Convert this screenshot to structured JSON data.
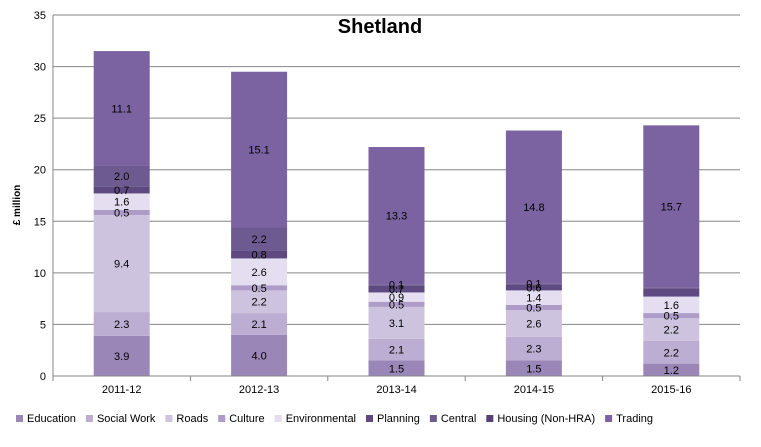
{
  "chart_data": {
    "type": "bar",
    "stacked": true,
    "title": "Shetland",
    "xlabel": "",
    "ylabel": "£ million",
    "ylim": [
      0,
      35
    ],
    "yticks": [
      0,
      5,
      10,
      15,
      20,
      25,
      30,
      35
    ],
    "grid": true,
    "legend_position": "bottom",
    "categories": [
      "2011-12",
      "2012-13",
      "2013-14",
      "2014-15",
      "2015-16"
    ],
    "series": [
      {
        "name": "Education",
        "color": "#9b86b8",
        "values": [
          3.9,
          4.0,
          1.5,
          1.5,
          1.2
        ],
        "labels": [
          "3.9",
          "4.0",
          "1.5",
          "1.5",
          "1.2"
        ]
      },
      {
        "name": "Social Work",
        "color": "#bcaed2",
        "values": [
          2.3,
          2.1,
          2.1,
          2.3,
          2.2
        ],
        "labels": [
          "2.3",
          "2.1",
          "2.1",
          "2.3",
          "2.2"
        ]
      },
      {
        "name": "Roads",
        "color": "#cdc3de",
        "values": [
          9.4,
          2.2,
          3.1,
          2.6,
          2.2
        ],
        "labels": [
          "9.4",
          "2.2",
          "3.1",
          "2.6",
          "2.2"
        ]
      },
      {
        "name": "Culture",
        "color": "#ad9cc7",
        "values": [
          0.5,
          0.5,
          0.5,
          0.5,
          0.5
        ],
        "labels": [
          "0.5",
          "0.5",
          "0.5",
          "0.5",
          "0.5"
        ]
      },
      {
        "name": "Environmental",
        "color": "#e4def0",
        "values": [
          1.6,
          2.6,
          0.9,
          1.4,
          1.6
        ],
        "labels": [
          "1.6",
          "2.6",
          "0.9",
          "1.4",
          "1.6"
        ]
      },
      {
        "name": "Planning",
        "color": "#5e4a80",
        "values": [
          0.7,
          0.8,
          0.7,
          0.6,
          0.8
        ],
        "labels": [
          "0.7",
          "0.8",
          "0.7",
          "0.6",
          ""
        ]
      },
      {
        "name": "Central",
        "color": "#6d5a90",
        "values": [
          2.0,
          2.2,
          0.1,
          0.1,
          0.1
        ],
        "labels": [
          "2.0",
          "2.2",
          "0.1",
          "0.1",
          ""
        ]
      },
      {
        "name": "Housing (Non-HRA)",
        "color": "#55407a",
        "values": [
          0.0,
          0.0,
          0.0,
          0.0,
          0.0
        ],
        "labels": [
          "",
          "",
          "",
          "",
          ""
        ]
      },
      {
        "name": "Trading",
        "color": "#7b62a1",
        "values": [
          11.1,
          15.1,
          13.3,
          14.8,
          15.7
        ],
        "labels": [
          "11.1",
          "15.1",
          "13.3",
          "14.8",
          "15.7"
        ]
      }
    ]
  }
}
